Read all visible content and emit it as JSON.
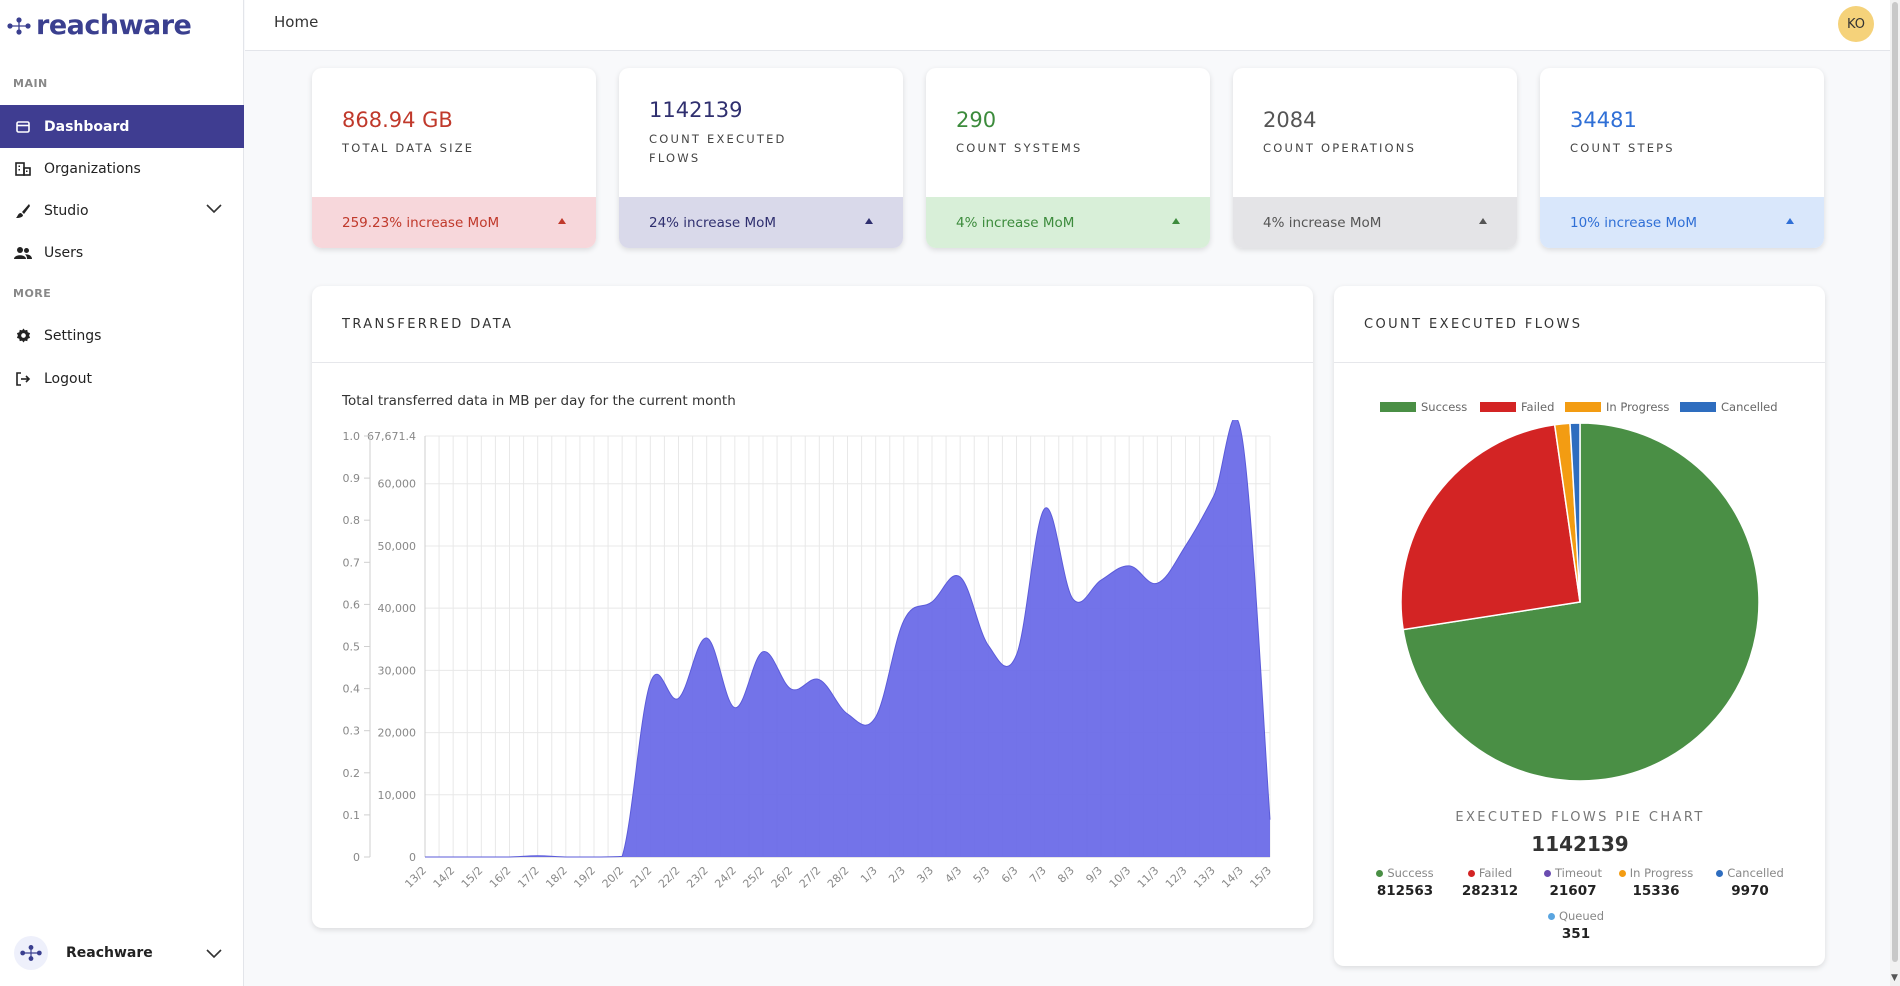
{
  "app": {
    "logo_text": "reachware"
  },
  "sidebar": {
    "section_main": "MAIN",
    "section_more": "MORE",
    "items": [
      {
        "label": "Dashboard",
        "icon": "dashboard-icon"
      },
      {
        "label": "Organizations",
        "icon": "organization-icon"
      },
      {
        "label": "Studio",
        "icon": "brush-icon"
      },
      {
        "label": "Users",
        "icon": "users-icon"
      },
      {
        "label": "Settings",
        "icon": "gear-icon"
      },
      {
        "label": "Logout",
        "icon": "logout-icon"
      }
    ],
    "footer": {
      "label": "Reachware"
    }
  },
  "topbar": {
    "breadcrumb": "Home",
    "avatar_initials": "KO"
  },
  "kpis": [
    {
      "value": "868.94 GB",
      "label": "TOTAL DATA SIZE",
      "change": "259.23% increase MoM",
      "color": "#c0392b",
      "bg": "#f7d7db"
    },
    {
      "value": "1142139",
      "label": "COUNT EXECUTED FLOWS",
      "change": "24% increase MoM",
      "color": "#2f2f6f",
      "bg": "#d9d9ea"
    },
    {
      "value": "290",
      "label": "COUNT SYSTEMS",
      "change": "4% increase MoM",
      "color": "#3c8b3c",
      "bg": "#d8efd8"
    },
    {
      "value": "2084",
      "label": "COUNT OPERATIONS",
      "change": "4% increase MoM",
      "color": "#555555",
      "bg": "#e4e4e7"
    },
    {
      "value": "34481",
      "label": "COUNT STEPS",
      "change": "10% increase MoM",
      "color": "#2f6fd6",
      "bg": "#d9e7fb"
    }
  ],
  "transferred": {
    "title": "TRANSFERRED DATA",
    "subtitle": "Total transferred data in MB per day for the current month"
  },
  "flows": {
    "title": "COUNT EXECUTED FLOWS",
    "pie_title": "EXECUTED FLOWS PIE CHART",
    "total": "1142139",
    "stats": [
      {
        "label": "Success",
        "value": "812563",
        "color": "#4a8f45"
      },
      {
        "label": "Failed",
        "value": "282312",
        "color": "#d32424"
      },
      {
        "label": "Timeout",
        "value": "21607",
        "color": "#6a4cb0"
      },
      {
        "label": "In Progress",
        "value": "15336",
        "color": "#f39c12"
      },
      {
        "label": "Cancelled",
        "value": "9970",
        "color": "#2e6dbf"
      },
      {
        "label": "Queued",
        "value": "351",
        "color": "#5aa5e0"
      }
    ]
  },
  "chart_data": [
    {
      "type": "area",
      "title": "Total transferred data in MB per day for the current month",
      "xlabel": "",
      "ylabel": "",
      "color": "#6b6be8",
      "categories": [
        "13/2",
        "14/2",
        "15/2",
        "16/2",
        "17/2",
        "18/2",
        "19/2",
        "20/2",
        "21/2",
        "22/2",
        "23/2",
        "24/2",
        "25/2",
        "26/2",
        "27/2",
        "28/2",
        "1/3",
        "2/3",
        "3/3",
        "4/3",
        "5/3",
        "6/3",
        "7/3",
        "8/3",
        "9/3",
        "10/3",
        "11/3",
        "12/3",
        "13/3",
        "14/3",
        "15/3"
      ],
      "values": [
        0,
        0,
        0,
        0,
        200,
        0,
        0,
        100,
        28000,
        25500,
        35200,
        24000,
        33000,
        27000,
        28500,
        23000,
        22500,
        38000,
        41000,
        45000,
        34000,
        32500,
        56000,
        41500,
        44500,
        46800,
        44000,
        50000,
        58000,
        67671.4,
        6000
      ],
      "ylim": [
        0,
        67671.4
      ],
      "y_ticks": [
        "0",
        "10,000",
        "20,000",
        "30,000",
        "40,000",
        "50,000",
        "60,000",
        "67,671.4"
      ],
      "y2_ticks": [
        "0",
        "0.1",
        "0.2",
        "0.3",
        "0.4",
        "0.5",
        "0.6",
        "0.7",
        "0.8",
        "0.9",
        "1.0"
      ],
      "grid": true
    },
    {
      "type": "pie",
      "title": "",
      "legend": [
        "Success",
        "Failed",
        "In Progress",
        "Cancelled"
      ],
      "legend_position": "top",
      "series": [
        {
          "name": "Success",
          "value": 812563,
          "color": "#4a8f45"
        },
        {
          "name": "Failed",
          "value": 282312,
          "color": "#d32424"
        },
        {
          "name": "In Progress",
          "value": 15336,
          "color": "#f39c12"
        },
        {
          "name": "Cancelled",
          "value": 9970,
          "color": "#2e6dbf"
        }
      ]
    }
  ]
}
